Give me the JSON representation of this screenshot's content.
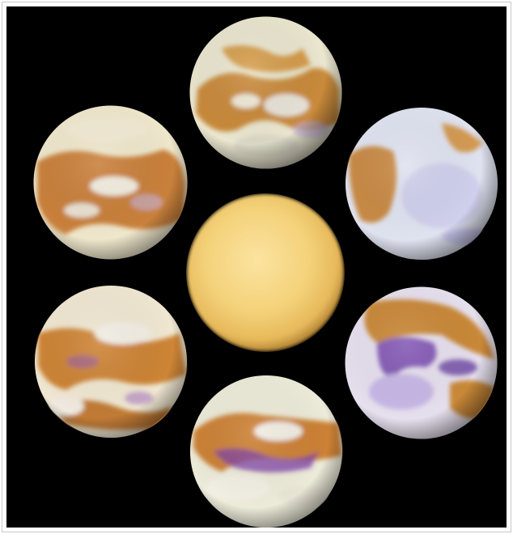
{
  "image": {
    "background": "#000000",
    "border_color": "#c9c9c9",
    "center_globe": {
      "color": "#f4d27a",
      "edge_color": "#c99a3e"
    },
    "surface_globes": [
      {
        "position": "top",
        "land": "#c98a3a",
        "cloud": "#eae6cf",
        "tint": "#b9a9d8"
      },
      {
        "position": "upper-left",
        "land": "#c9803a",
        "cloud": "#efe7cc",
        "tint": "#c6b5df"
      },
      {
        "position": "upper-right",
        "land": "#c98a44",
        "cloud": "#dfe3f0",
        "tint": "#b8b2e8"
      },
      {
        "position": "lower-left",
        "land": "#cd8436",
        "cloud": "#f0e7d2",
        "tint": "#8f55b8"
      },
      {
        "position": "lower-right",
        "land": "#c98838",
        "cloud": "#e6e0ee",
        "tint": "#6b3aa8"
      },
      {
        "position": "bottom",
        "land": "#cc8136",
        "cloud": "#ecead8",
        "tint": "#7c3fa6"
      }
    ]
  }
}
